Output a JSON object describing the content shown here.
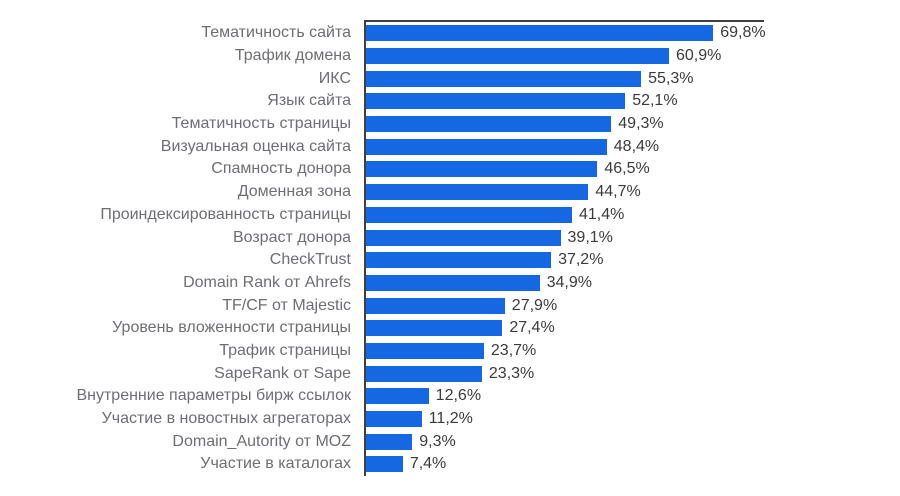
{
  "chart_data": {
    "type": "bar",
    "orientation": "horizontal",
    "title": "",
    "xlabel": "",
    "ylabel": "",
    "xlim": [
      0,
      80
    ],
    "grid": false,
    "legend": false,
    "bar_color": "#1568e2",
    "axis_color": "#3f3f3f",
    "label_color": "#6e6e73",
    "value_color": "#3b3b3b",
    "categories": [
      "Тематичность сайта",
      "Трафик домена",
      "ИКС",
      "Язык сайта",
      "Тематичность страницы",
      "Визуальная оценка сайта",
      "Спамность донора",
      "Доменная зона",
      "Проиндексированность страницы",
      "Возраст донора",
      "CheckTrust",
      "Domain Rank от Ahrefs",
      "TF/CF от Majestic",
      "Уровень вложенности страницы",
      "Трафик страницы",
      "SapeRank от Sape",
      "Внутренние параметры бирж ссылок",
      "Участие в новостных агрегаторах",
      "Domain_Autority от MOZ",
      "Участие в каталогах"
    ],
    "values": [
      69.8,
      60.9,
      55.3,
      52.1,
      49.3,
      48.4,
      46.5,
      44.7,
      41.4,
      39.1,
      37.2,
      34.9,
      27.9,
      27.4,
      23.7,
      23.3,
      12.6,
      11.2,
      9.3,
      7.4
    ],
    "value_labels": [
      "69,8%",
      "60,9%",
      "55,3%",
      "52,1%",
      "49,3%",
      "48,4%",
      "46,5%",
      "44,7%",
      "41,4%",
      "39,1%",
      "37,2%",
      "34,9%",
      "27,9%",
      "27,4%",
      "23,7%",
      "23,3%",
      "12,6%",
      "11,2%",
      "9,3%",
      "7,4%"
    ]
  }
}
